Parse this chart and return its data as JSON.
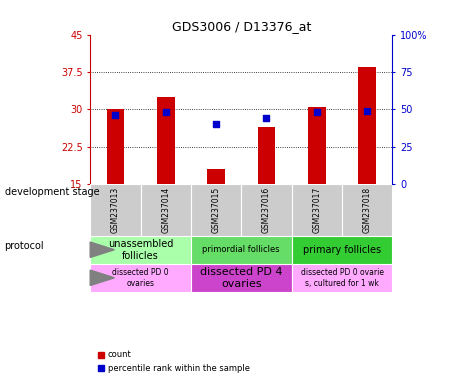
{
  "title": "GDS3006 / D13376_at",
  "samples": [
    "GSM237013",
    "GSM237014",
    "GSM237015",
    "GSM237016",
    "GSM237017",
    "GSM237018"
  ],
  "count_values": [
    30.0,
    32.5,
    18.0,
    26.5,
    30.5,
    38.5
  ],
  "percentile_values": [
    46,
    48,
    40,
    44,
    48,
    49
  ],
  "ylim_left": [
    15,
    45
  ],
  "ylim_right": [
    0,
    100
  ],
  "yticks_left": [
    15,
    22.5,
    30,
    37.5,
    45
  ],
  "yticks_right": [
    0,
    25,
    50,
    75,
    100
  ],
  "ytick_labels_left": [
    "15",
    "22.5",
    "30",
    "37.5",
    "45"
  ],
  "ytick_labels_right": [
    "0",
    "25",
    "50",
    "75",
    "100%"
  ],
  "bar_color": "#cc0000",
  "dot_color": "#0000cc",
  "bar_bottom": 15,
  "background_color": "#ffffff",
  "dev_stage_groups": [
    [
      0,
      2,
      "#aaffaa",
      "unassembled\nfollicles",
      7
    ],
    [
      2,
      4,
      "#66dd66",
      "primordial follicles",
      6
    ],
    [
      4,
      6,
      "#33cc33",
      "primary follicles",
      7
    ]
  ],
  "prot_groups": [
    [
      0,
      2,
      "#ffaaff",
      "dissected PD 0\novaries",
      5.5
    ],
    [
      2,
      4,
      "#cc44cc",
      "dissected PD 4\novaries",
      8
    ],
    [
      4,
      6,
      "#ffaaff",
      "dissected PD 0 ovarie\ns, cultured for 1 wk",
      5.5
    ]
  ],
  "left_axis_color": "#cc0000",
  "right_axis_color": "#0000cc",
  "tick_label_area_bg": "#cccccc",
  "left_label_dev": "development stage",
  "left_label_prot": "protocol"
}
